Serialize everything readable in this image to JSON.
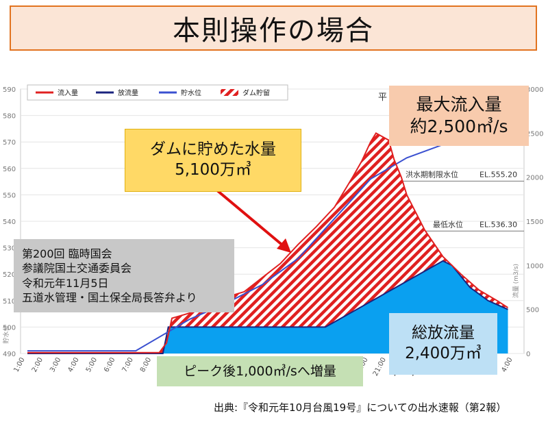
{
  "title": "本則操作の場合",
  "chart_data": {
    "type": "line",
    "legend": [
      "流入量",
      "放流量",
      "貯水位",
      "ダム貯留"
    ],
    "legend_placement": "top-left",
    "categories": [
      "1:00",
      "2:00",
      "3:00",
      "4:00",
      "5:00",
      "6:00",
      "7:00",
      "8:00",
      "9:00",
      "10:00",
      "11:00",
      "12:00",
      "13:00",
      "14:00",
      "15:00",
      "16:00",
      "17:00",
      "18:00",
      "19:00",
      "20:00",
      "21:00",
      "22:00",
      "23:00",
      "0:00",
      "1:00",
      "2:00",
      "3:00",
      "4:00"
    ],
    "left_axis": {
      "label": "貯水位",
      "ticks": [
        490,
        500,
        510,
        520,
        530,
        540,
        550,
        560,
        570,
        580,
        590
      ],
      "range": [
        490,
        590
      ]
    },
    "right_axis": {
      "label": "流量 (m3/s)",
      "ticks": [
        0,
        500,
        1000,
        1500,
        2000,
        2500,
        3000
      ],
      "range": [
        0,
        3000
      ]
    },
    "hlines": [
      {
        "label": "洪水期制限水位",
        "value": "EL.555.20",
        "elevation": 555.2
      },
      {
        "label": "最低水位",
        "value": "EL.536.30",
        "elevation": 536.3
      }
    ],
    "top_label": "平",
    "series": [
      {
        "name": "流入量",
        "color": "#e02020",
        "x": [
          0,
          5,
          7.3,
          7.7,
          8,
          8.5,
          9,
          10,
          11,
          12,
          13,
          14,
          15,
          16,
          17,
          18,
          18.5,
          19,
          19.3,
          20,
          20.3,
          20.7,
          21,
          22,
          22.5,
          23,
          23.5,
          24,
          25,
          26,
          26.6
        ],
        "values": [
          10,
          10,
          10,
          120,
          400,
          430,
          460,
          560,
          640,
          700,
          860,
          1020,
          1240,
          1440,
          1660,
          2000,
          2180,
          2400,
          2500,
          2420,
          2200,
          2000,
          1800,
          1400,
          1250,
          1100,
          1000,
          900,
          720,
          600,
          520
        ]
      },
      {
        "name": "放流量",
        "color": "#1a237e",
        "x": [
          0,
          7.5,
          7.8,
          16.5,
          23,
          23.5,
          24.5,
          25.5,
          26.6
        ],
        "values": [
          0,
          0,
          300,
          300,
          1050,
          1000,
          750,
          600,
          500
        ]
      },
      {
        "name": "貯水位",
        "color": "#3a50d0",
        "x": [
          0,
          6,
          9,
          11,
          13,
          15,
          17,
          19,
          21,
          23,
          24
        ],
        "values": [
          491,
          491,
          503,
          509,
          516,
          526,
          541,
          556,
          564,
          569,
          571
        ]
      }
    ],
    "fill": {
      "name": "ダム貯留",
      "volume": "5,100万㎥"
    }
  },
  "callouts": {
    "max_inflow": [
      "最大流入量",
      "約2,500㎥/s"
    ],
    "stored": [
      "ダムに貯めた水量",
      "5,100万㎥"
    ],
    "total_outflow": [
      "総放流量",
      "2,400万㎥"
    ],
    "peak_increase": "ピーク後1,000㎥/sへ増量",
    "source_note": [
      "第200回 臨時国会",
      "参議院国土交通委員会",
      "令和元年11月5日",
      "五道水管理・国土保全局長答弁より"
    ]
  },
  "footer": "出典:『令和元年10月台風19号』についての出水速報（第2報）"
}
